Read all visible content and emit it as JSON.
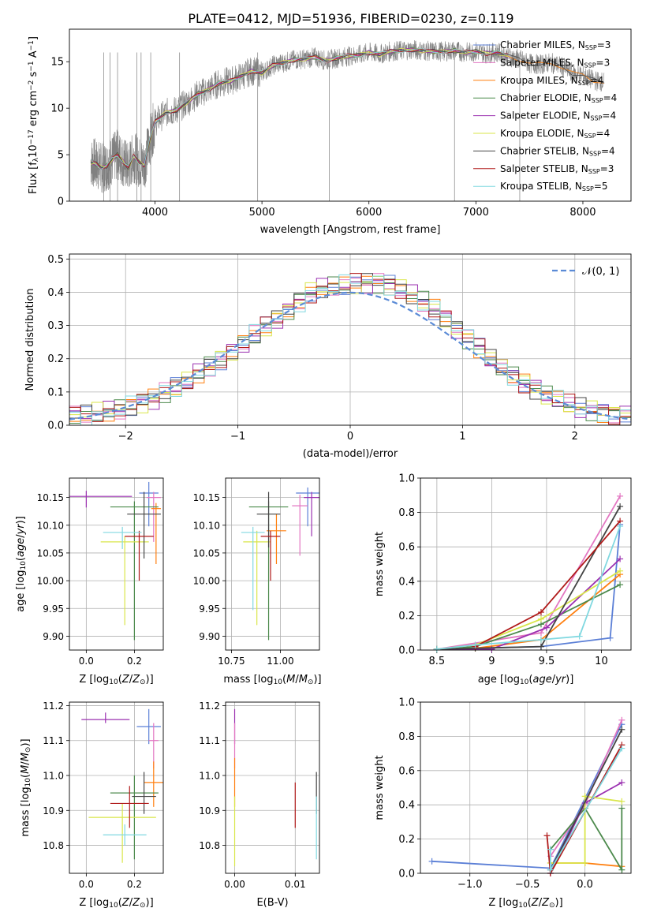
{
  "figure_title": "PLATE=0412, MJD=51936, FIBERID=0230, z=0.119",
  "colors": {
    "Chabrier MILES": "#5b7fd6",
    "Salpeter MILES": "#e377c2",
    "Kroupa MILES": "#ff7f0e",
    "Chabrier ELODIE": "#4c8a4c",
    "Salpeter ELODIE": "#9b30b0",
    "Kroupa ELODIE": "#d9e64a",
    "Chabrier STELIB": "#444444",
    "Salpeter STELIB": "#b01a1a",
    "Kroupa STELIB": "#80d8e0",
    "data": "#808080",
    "normal": "#5b8bd6"
  },
  "chart_data": [
    {
      "id": "spectrum",
      "type": "line",
      "title": "PLATE=0412, MJD=51936, FIBERID=0230, z=0.119",
      "xlabel": "wavelength [Angstrom, rest frame]",
      "ylabel": "Flux [f_λ 10^-17 erg cm^-2 s^-1 A^-1]",
      "xlim": [
        3200,
        8450
      ],
      "ylim": [
        0,
        18.5
      ],
      "xticks": [
        4000,
        5000,
        6000,
        7000,
        8000
      ],
      "yticks": [
        0,
        5,
        10,
        15
      ],
      "grid": false,
      "legend_position": "right",
      "data_series": {
        "name": "data",
        "x": [
          3400,
          3450,
          3500,
          3550,
          3600,
          3650,
          3700,
          3750,
          3800,
          3850,
          3900,
          3950,
          4000,
          4100,
          4200,
          4300,
          4400,
          4500,
          4600,
          4700,
          4800,
          4900,
          5000,
          5100,
          5200,
          5300,
          5400,
          5500,
          5600,
          5700,
          5800,
          5900,
          6000,
          6100,
          6200,
          6300,
          6400,
          6500,
          6600,
          6700,
          6800,
          6900,
          7000,
          7100,
          7200,
          7300,
          7400,
          7500,
          7600,
          7700,
          7800,
          7900,
          8000,
          8100,
          8200
        ],
        "y": [
          4.2,
          4.0,
          3.6,
          3.8,
          4.5,
          5.0,
          4.3,
          3.6,
          4.8,
          4.2,
          3.9,
          6.5,
          8.5,
          9.5,
          9.8,
          10.6,
          11.5,
          12.0,
          12.7,
          12.9,
          13.4,
          14.0,
          13.8,
          14.6,
          14.9,
          15.2,
          15.3,
          15.5,
          15.1,
          15.4,
          15.6,
          15.7,
          16.0,
          15.8,
          16.1,
          16.2,
          16.3,
          16.2,
          16.1,
          16.1,
          16.2,
          16.0,
          16.1,
          15.9,
          16.0,
          15.6,
          15.3,
          14.8,
          14.7,
          14.9,
          14.5,
          13.8,
          13.5,
          13.0,
          12.8
        ]
      },
      "series": [
        {
          "name": "Chabrier MILES, N_SSP=3"
        },
        {
          "name": "Salpeter MILES, N_SSP=3"
        },
        {
          "name": "Kroupa MILES, N_SSP=4"
        },
        {
          "name": "Chabrier ELODIE, N_SSP=4"
        },
        {
          "name": "Salpeter ELODIE, N_SSP=4"
        },
        {
          "name": "Kroupa ELODIE, N_SSP=4"
        },
        {
          "name": "Chabrier STELIB, N_SSP=4"
        },
        {
          "name": "Salpeter STELIB, N_SSP=3"
        },
        {
          "name": "Kroupa STELIB, N_SSP=5"
        }
      ]
    },
    {
      "id": "residuals",
      "type": "line",
      "xlabel": "(data-model)/error",
      "ylabel": "Normed distribution",
      "xlim": [
        -2.5,
        2.5
      ],
      "ylim": [
        0,
        0.515
      ],
      "xticks": [
        -2,
        -1,
        0,
        1,
        2
      ],
      "yticks": [
        0.0,
        0.1,
        0.2,
        0.3,
        0.4,
        0.5
      ],
      "grid": true,
      "legend_position": "top-right",
      "legend": [
        "𝒩(0, 1)"
      ],
      "bins_center": [
        -2.45,
        -2.35,
        -2.25,
        -2.15,
        -2.05,
        -1.95,
        -1.85,
        -1.75,
        -1.65,
        -1.55,
        -1.45,
        -1.35,
        -1.25,
        -1.15,
        -1.05,
        -0.95,
        -0.85,
        -0.75,
        -0.65,
        -0.55,
        -0.45,
        -0.35,
        -0.25,
        -0.15,
        -0.05,
        0.05,
        0.15,
        0.25,
        0.35,
        0.45,
        0.55,
        0.65,
        0.75,
        0.85,
        0.95,
        1.05,
        1.15,
        1.25,
        1.35,
        1.45,
        1.55,
        1.65,
        1.75,
        1.85,
        1.95,
        2.05,
        2.15,
        2.25,
        2.35,
        2.45
      ],
      "mean_hist": [
        0.03,
        0.03,
        0.035,
        0.04,
        0.05,
        0.06,
        0.07,
        0.08,
        0.095,
        0.11,
        0.13,
        0.155,
        0.18,
        0.2,
        0.22,
        0.245,
        0.27,
        0.295,
        0.32,
        0.345,
        0.375,
        0.4,
        0.41,
        0.415,
        0.42,
        0.425,
        0.43,
        0.43,
        0.42,
        0.41,
        0.39,
        0.37,
        0.35,
        0.32,
        0.29,
        0.26,
        0.23,
        0.2,
        0.175,
        0.15,
        0.13,
        0.11,
        0.09,
        0.075,
        0.06,
        0.05,
        0.045,
        0.04,
        0.035,
        0.03
      ],
      "series": [
        {
          "name": "Chabrier MILES"
        },
        {
          "name": "Salpeter MILES"
        },
        {
          "name": "Kroupa MILES"
        },
        {
          "name": "Chabrier ELODIE"
        },
        {
          "name": "Salpeter ELODIE"
        },
        {
          "name": "Kroupa ELODIE"
        },
        {
          "name": "Chabrier STELIB"
        },
        {
          "name": "Salpeter STELIB"
        },
        {
          "name": "Kroupa STELIB"
        }
      ]
    },
    {
      "id": "age_vs_Z",
      "type": "scatter",
      "xlabel": "Z [log10(Z/Z⊙)]",
      "ylabel": "age [log10(age/yr)]",
      "xlim": [
        -0.07,
        0.32
      ],
      "ylim": [
        9.875,
        10.185
      ],
      "xticks": [
        0.0,
        0.2
      ],
      "xtick_labels": [
        "0.0",
        "0.2"
      ],
      "yticks": [
        9.9,
        9.95,
        10.0,
        10.05,
        10.1,
        10.15
      ],
      "ytick_labels": [
        "9.90",
        "9.95",
        "10.00",
        "10.05",
        "10.10",
        "10.15"
      ],
      "grid": true,
      "points": [
        {
          "series": "Chabrier MILES",
          "x": 0.26,
          "y": 10.158,
          "xerr": 0.04,
          "yerr_lo": 0.06,
          "yerr_hi": 0.02
        },
        {
          "series": "Salpeter MILES",
          "x": 0.28,
          "y": 10.15,
          "xerr": 0.03,
          "yerr_lo": 0.08,
          "yerr_hi": 0.01
        },
        {
          "series": "Kroupa MILES",
          "x": 0.29,
          "y": 10.13,
          "xerr": 0.02,
          "yerr_lo": 0.1,
          "yerr_hi": 0.01
        },
        {
          "series": "Chabrier ELODIE",
          "x": 0.2,
          "y": 10.133,
          "xerr": 0.1,
          "yerr_lo": 0.24,
          "yerr_hi": 0.01
        },
        {
          "series": "Salpeter ELODIE",
          "x": 0.0,
          "y": 10.152,
          "xerr": 0.19,
          "yerr_lo": 0.02,
          "yerr_hi": 0.01
        },
        {
          "series": "Kroupa ELODIE",
          "x": 0.16,
          "y": 10.07,
          "xerr": 0.1,
          "yerr_lo": 0.15,
          "yerr_hi": 0.01
        },
        {
          "series": "Chabrier STELIB",
          "x": 0.24,
          "y": 10.12,
          "xerr": 0.07,
          "yerr_lo": 0.08,
          "yerr_hi": 0.04
        },
        {
          "series": "Salpeter STELIB",
          "x": 0.22,
          "y": 10.08,
          "xerr": 0.06,
          "yerr_lo": 0.08,
          "yerr_hi": 0.01
        },
        {
          "series": "Kroupa STELIB",
          "x": 0.15,
          "y": 10.087,
          "xerr": 0.08,
          "yerr_lo": 0.03,
          "yerr_hi": 0.01
        }
      ]
    },
    {
      "id": "age_vs_mass",
      "type": "scatter",
      "xlabel": "mass [log10(M/M⊙)]",
      "xlim": [
        10.72,
        11.2
      ],
      "ylim": [
        9.875,
        10.185
      ],
      "xticks": [
        10.75,
        11.0
      ],
      "xtick_labels": [
        "10.75",
        "11.00"
      ],
      "yticks": [
        9.9,
        9.95,
        10.0,
        10.05,
        10.1,
        10.15
      ],
      "ytick_labels": [
        "9.90",
        "9.95",
        "10.00",
        "10.05",
        "10.10",
        "10.15"
      ],
      "grid": true,
      "points": [
        {
          "series": "Chabrier MILES",
          "x": 11.14,
          "y": 10.158,
          "xerr": 0.06,
          "yerr_lo": 0.06,
          "yerr_hi": 0.01
        },
        {
          "series": "Salpeter MILES",
          "x": 11.1,
          "y": 10.135,
          "xerr": 0.04,
          "yerr_lo": 0.09,
          "yerr_hi": 0.02
        },
        {
          "series": "Kroupa MILES",
          "x": 10.98,
          "y": 10.09,
          "xerr": 0.05,
          "yerr_lo": 0.06,
          "yerr_hi": 0.03
        },
        {
          "series": "Chabrier ELODIE",
          "x": 10.94,
          "y": 10.133,
          "xerr": 0.1,
          "yerr_lo": 0.24,
          "yerr_hi": 0.01
        },
        {
          "series": "Salpeter ELODIE",
          "x": 11.16,
          "y": 10.15,
          "xerr": 0.04,
          "yerr_lo": 0.07,
          "yerr_hi": 0.01
        },
        {
          "series": "Kroupa ELODIE",
          "x": 10.88,
          "y": 10.07,
          "xerr": 0.07,
          "yerr_lo": 0.15,
          "yerr_hi": 0.02
        },
        {
          "series": "Chabrier STELIB",
          "x": 10.94,
          "y": 10.12,
          "xerr": 0.06,
          "yerr_lo": 0.06,
          "yerr_hi": 0.04
        },
        {
          "series": "Salpeter STELIB",
          "x": 10.95,
          "y": 10.08,
          "xerr": 0.05,
          "yerr_lo": 0.08,
          "yerr_hi": 0.01
        },
        {
          "series": "Kroupa STELIB",
          "x": 10.86,
          "y": 10.087,
          "xerr": 0.06,
          "yerr_lo": 0.14,
          "yerr_hi": 0.01
        }
      ]
    },
    {
      "id": "mass_weight_vs_age",
      "type": "line",
      "xlabel": "age [log10(age/yr)]",
      "ylabel": "mass weight",
      "xlim": [
        8.35,
        10.27
      ],
      "ylim": [
        0.0,
        1.0
      ],
      "xticks": [
        8.5,
        9.0,
        9.5,
        10.0
      ],
      "yticks": [
        0.0,
        0.2,
        0.4,
        0.6,
        0.8,
        1.0
      ],
      "grid": true,
      "series": [
        {
          "name": "Chabrier MILES",
          "x": [
            8.5,
            9.45,
            10.08,
            10.17
          ],
          "y": [
            0.005,
            0.02,
            0.07,
            0.73
          ]
        },
        {
          "name": "Salpeter MILES",
          "x": [
            8.5,
            9.45,
            10.17
          ],
          "y": [
            0.005,
            0.1,
            0.895
          ]
        },
        {
          "name": "Kroupa MILES",
          "x": [
            8.5,
            8.85,
            9.45,
            10.17
          ],
          "y": [
            0.005,
            0.01,
            0.06,
            0.44
          ]
        },
        {
          "name": "Chabrier ELODIE",
          "x": [
            8.5,
            8.85,
            9.45,
            10.17
          ],
          "y": [
            0.005,
            0.02,
            0.15,
            0.38
          ]
        },
        {
          "name": "Salpeter ELODIE",
          "x": [
            8.5,
            9.0,
            9.5,
            10.17
          ],
          "y": [
            0.005,
            0.005,
            0.13,
            0.53
          ]
        },
        {
          "name": "Kroupa ELODIE",
          "x": [
            8.5,
            8.85,
            9.45,
            10.17
          ],
          "y": [
            0.005,
            0.03,
            0.18,
            0.46
          ]
        },
        {
          "name": "Chabrier STELIB",
          "x": [
            8.5,
            8.85,
            9.45,
            10.17
          ],
          "y": [
            0.005,
            0.01,
            0.02,
            0.835
          ]
        },
        {
          "name": "Salpeter STELIB",
          "x": [
            8.85,
            9.45,
            10.17
          ],
          "y": [
            0.02,
            0.22,
            0.75
          ]
        },
        {
          "name": "Kroupa STELIB",
          "x": [
            8.5,
            8.85,
            9.45,
            9.8,
            10.17
          ],
          "y": [
            0.005,
            0.03,
            0.06,
            0.08,
            0.72
          ]
        }
      ]
    },
    {
      "id": "mass_vs_Z",
      "type": "scatter",
      "xlabel": "Z [log10(Z/Z⊙)]",
      "ylabel": "mass [log10(M/M⊙)]",
      "xlim": [
        -0.07,
        0.32
      ],
      "ylim": [
        10.72,
        11.21
      ],
      "xticks": [
        0.0,
        0.2
      ],
      "xtick_labels": [
        "0.0",
        "0.2"
      ],
      "yticks": [
        10.8,
        10.9,
        11.0,
        11.1,
        11.2
      ],
      "ytick_labels": [
        "10.8",
        "10.9",
        "11.0",
        "11.1",
        "11.2"
      ],
      "grid": true,
      "points": [
        {
          "series": "Chabrier MILES",
          "x": 0.26,
          "y": 11.14,
          "xerr": 0.05,
          "yerr_lo": 0.05,
          "yerr_hi": 0.05
        },
        {
          "series": "Salpeter MILES",
          "x": 0.28,
          "y": 11.1,
          "xerr": 0.02,
          "yerr_lo": 0.08,
          "yerr_hi": 0.05
        },
        {
          "series": "Kroupa MILES",
          "x": 0.28,
          "y": 10.98,
          "xerr": 0.04,
          "yerr_lo": 0.07,
          "yerr_hi": 0.06
        },
        {
          "series": "Chabrier ELODIE",
          "x": 0.2,
          "y": 10.95,
          "xerr": 0.1,
          "yerr_lo": 0.19,
          "yerr_hi": 0.05
        },
        {
          "series": "Salpeter ELODIE",
          "x": 0.08,
          "y": 11.16,
          "xerr": 0.1,
          "yerr_lo": 0.01,
          "yerr_hi": 0.02
        },
        {
          "series": "Kroupa ELODIE",
          "x": 0.15,
          "y": 10.88,
          "xerr": 0.14,
          "yerr_lo": 0.13,
          "yerr_hi": 0.04
        },
        {
          "series": "Chabrier STELIB",
          "x": 0.24,
          "y": 10.94,
          "xerr": 0.05,
          "yerr_lo": 0.05,
          "yerr_hi": 0.07
        },
        {
          "series": "Salpeter STELIB",
          "x": 0.18,
          "y": 10.92,
          "xerr": 0.08,
          "yerr_lo": 0.07,
          "yerr_hi": 0.05
        },
        {
          "series": "Kroupa STELIB",
          "x": 0.16,
          "y": 10.83,
          "xerr": 0.09,
          "yerr_lo": 0.03,
          "yerr_hi": 0.03
        }
      ]
    },
    {
      "id": "mass_vs_ebv",
      "type": "scatter",
      "xlabel": "E(B-V)",
      "xlim": [
        -0.0015,
        0.014
      ],
      "ylim": [
        10.72,
        11.21
      ],
      "xticks": [
        0.0,
        0.01
      ],
      "xtick_labels": [
        "0.00",
        "0.01"
      ],
      "yticks": [
        10.8,
        10.9,
        11.0,
        11.1,
        11.2
      ],
      "ytick_labels": [
        "10.8",
        "10.9",
        "11.0",
        "11.1",
        "11.2"
      ],
      "grid": true,
      "points": [
        {
          "series": "Salpeter ELODIE",
          "x": 0.0,
          "y": 11.14,
          "yerr_lo": 0.05,
          "yerr_hi": 0.05
        },
        {
          "series": "Salpeter MILES",
          "x": 0.0,
          "y": 11.1,
          "yerr_lo": 0.08,
          "yerr_hi": 0.05
        },
        {
          "series": "Kroupa MILES",
          "x": 0.0,
          "y": 10.98,
          "yerr_lo": 0.07,
          "yerr_hi": 0.07
        },
        {
          "series": "Kroupa ELODIE",
          "x": 0.0,
          "y": 10.86,
          "yerr_lo": 0.12,
          "yerr_hi": 0.08
        },
        {
          "series": "Salpeter STELIB",
          "x": 0.01,
          "y": 10.92,
          "yerr_lo": 0.07,
          "yerr_hi": 0.06
        },
        {
          "series": "Chabrier STELIB",
          "x": 0.0135,
          "y": 10.95,
          "yerr_lo": 0.06,
          "yerr_hi": 0.06
        },
        {
          "series": "Kroupa STELIB",
          "x": 0.0135,
          "y": 10.87,
          "yerr_lo": 0.11,
          "yerr_hi": 0.07
        }
      ]
    },
    {
      "id": "mass_weight_vs_Z",
      "type": "line",
      "xlabel": "Z [log10(Z/Z⊙)]",
      "ylabel": "mass weight",
      "xlim": [
        -1.43,
        0.4
      ],
      "ylim": [
        0.0,
        1.0
      ],
      "xticks": [
        -1.0,
        -0.5,
        0.0
      ],
      "xtick_labels": [
        "−1.0",
        "−0.5",
        "0.0"
      ],
      "yticks": [
        0.0,
        0.2,
        0.4,
        0.6,
        0.8,
        1.0
      ],
      "grid": true,
      "series": [
        {
          "name": "Chabrier MILES",
          "x": [
            -1.33,
            -0.3,
            0.32
          ],
          "y": [
            0.07,
            0.03,
            0.87
          ]
        },
        {
          "name": "Salpeter MILES",
          "x": [
            -0.3,
            0.0,
            0.32
          ],
          "y": [
            0.1,
            0.4,
            0.895
          ]
        },
        {
          "name": "Kroupa MILES",
          "x": [
            -0.3,
            0.0,
            0.32
          ],
          "y": [
            0.06,
            0.06,
            0.04
          ]
        },
        {
          "name": "Chabrier ELODIE",
          "x": [
            -0.3,
            0.0,
            0.32,
            0.32
          ],
          "y": [
            0.14,
            0.38,
            0.02,
            0.38
          ]
        },
        {
          "name": "Salpeter ELODIE",
          "x": [
            -0.3,
            0.0,
            0.32
          ],
          "y": [
            0.0,
            0.41,
            0.53
          ]
        },
        {
          "name": "Kroupa ELODIE",
          "x": [
            -0.3,
            0.0,
            0.0,
            0.32
          ],
          "y": [
            0.06,
            0.06,
            0.45,
            0.42
          ]
        },
        {
          "name": "Chabrier STELIB",
          "x": [
            -0.3,
            0.32
          ],
          "y": [
            0.02,
            0.84
          ]
        },
        {
          "name": "Salpeter STELIB",
          "x": [
            -0.33,
            -0.3,
            0.32
          ],
          "y": [
            0.22,
            0.0,
            0.75
          ]
        },
        {
          "name": "Kroupa STELIB",
          "x": [
            -0.3,
            -0.3,
            0.32
          ],
          "y": [
            0.14,
            0.02,
            0.73
          ]
        }
      ]
    }
  ]
}
